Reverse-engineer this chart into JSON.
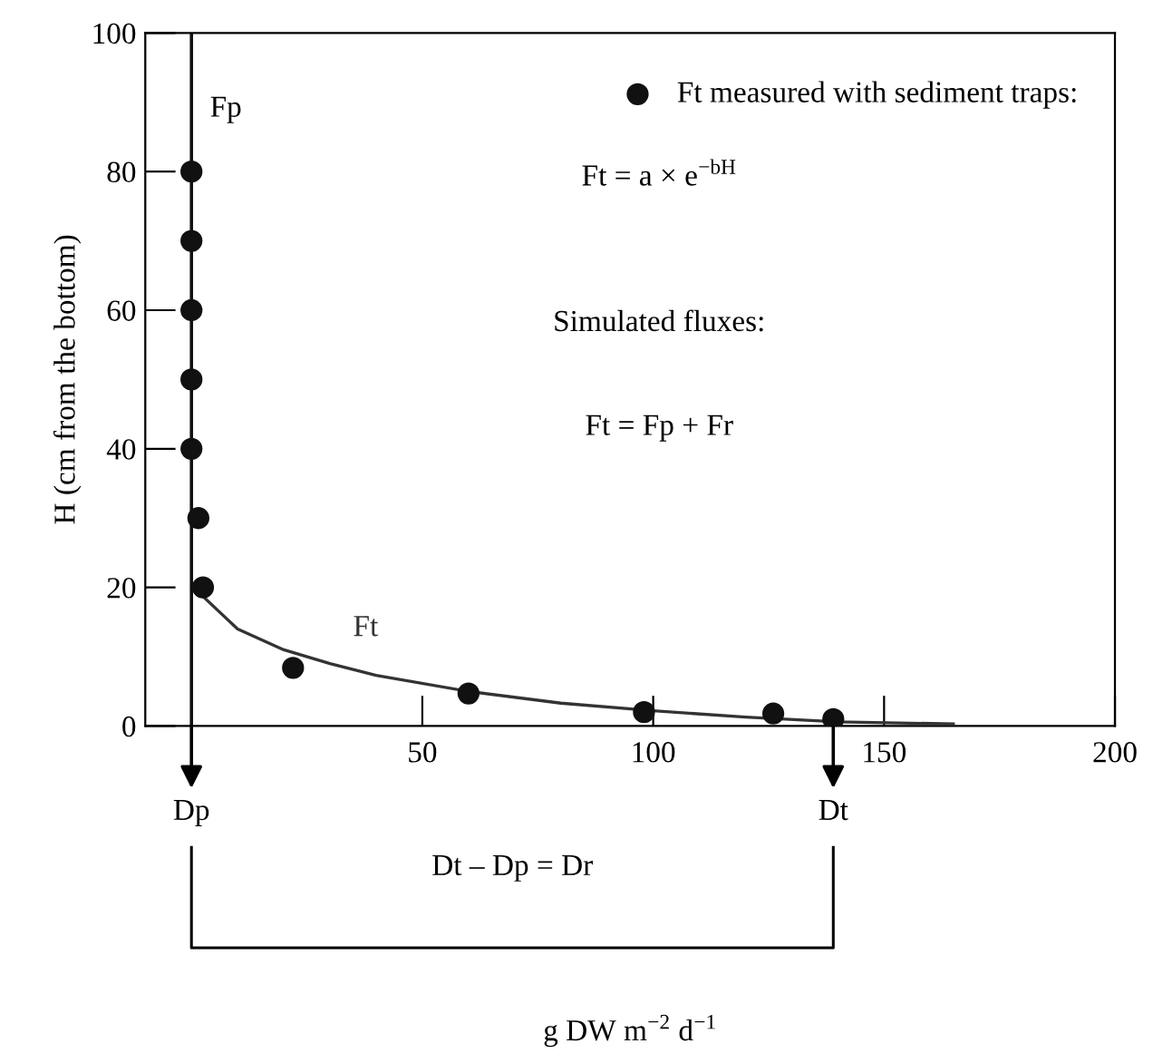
{
  "chart_data": {
    "type": "scatter",
    "ylabel": "H (cm from the bottom)",
    "xlim": [
      -10,
      200
    ],
    "ylim": [
      0,
      100
    ],
    "xticks": [
      50,
      100,
      150,
      200
    ],
    "yticks": [
      0,
      20,
      40,
      60,
      80,
      100
    ],
    "grid": false,
    "legend": "top right",
    "series": [
      {
        "name": "Ft measured with sediment traps:",
        "marker": "circle",
        "color": "#111111",
        "x": [
          0,
          0,
          0,
          0,
          0,
          1.5,
          2.5,
          22,
          60,
          98,
          126,
          139
        ],
        "values": [
          80,
          70,
          60,
          50,
          40,
          30,
          20,
          8.4,
          4.7,
          2,
          1.8,
          1
        ]
      },
      {
        "name": "Ft",
        "type": "line",
        "line_style": "solid",
        "color": "#333333",
        "x": [
          2,
          10,
          20,
          30,
          40,
          60,
          80,
          100,
          120,
          140,
          165
        ],
        "values": [
          19,
          14,
          11,
          9,
          7.3,
          5,
          3.3,
          2.2,
          1.3,
          0.6,
          0.3
        ]
      }
    ],
    "ref_lines": [
      {
        "axis": "x",
        "value": 0,
        "label": "Fp",
        "color": "#111111"
      }
    ],
    "annotations": [
      "Ft = a × e$^{−bH}$",
      "Simulated fluxes:",
      "Ft = Fp + Fr",
      {
        "text": "Dp",
        "x": 0,
        "y": 0
      },
      {
        "text": "Dt",
        "x": 139,
        "y": 0
      },
      "Dt – Dp = Dr",
      "g DW m$^{−2}$ d$^{−1}$"
    ]
  }
}
